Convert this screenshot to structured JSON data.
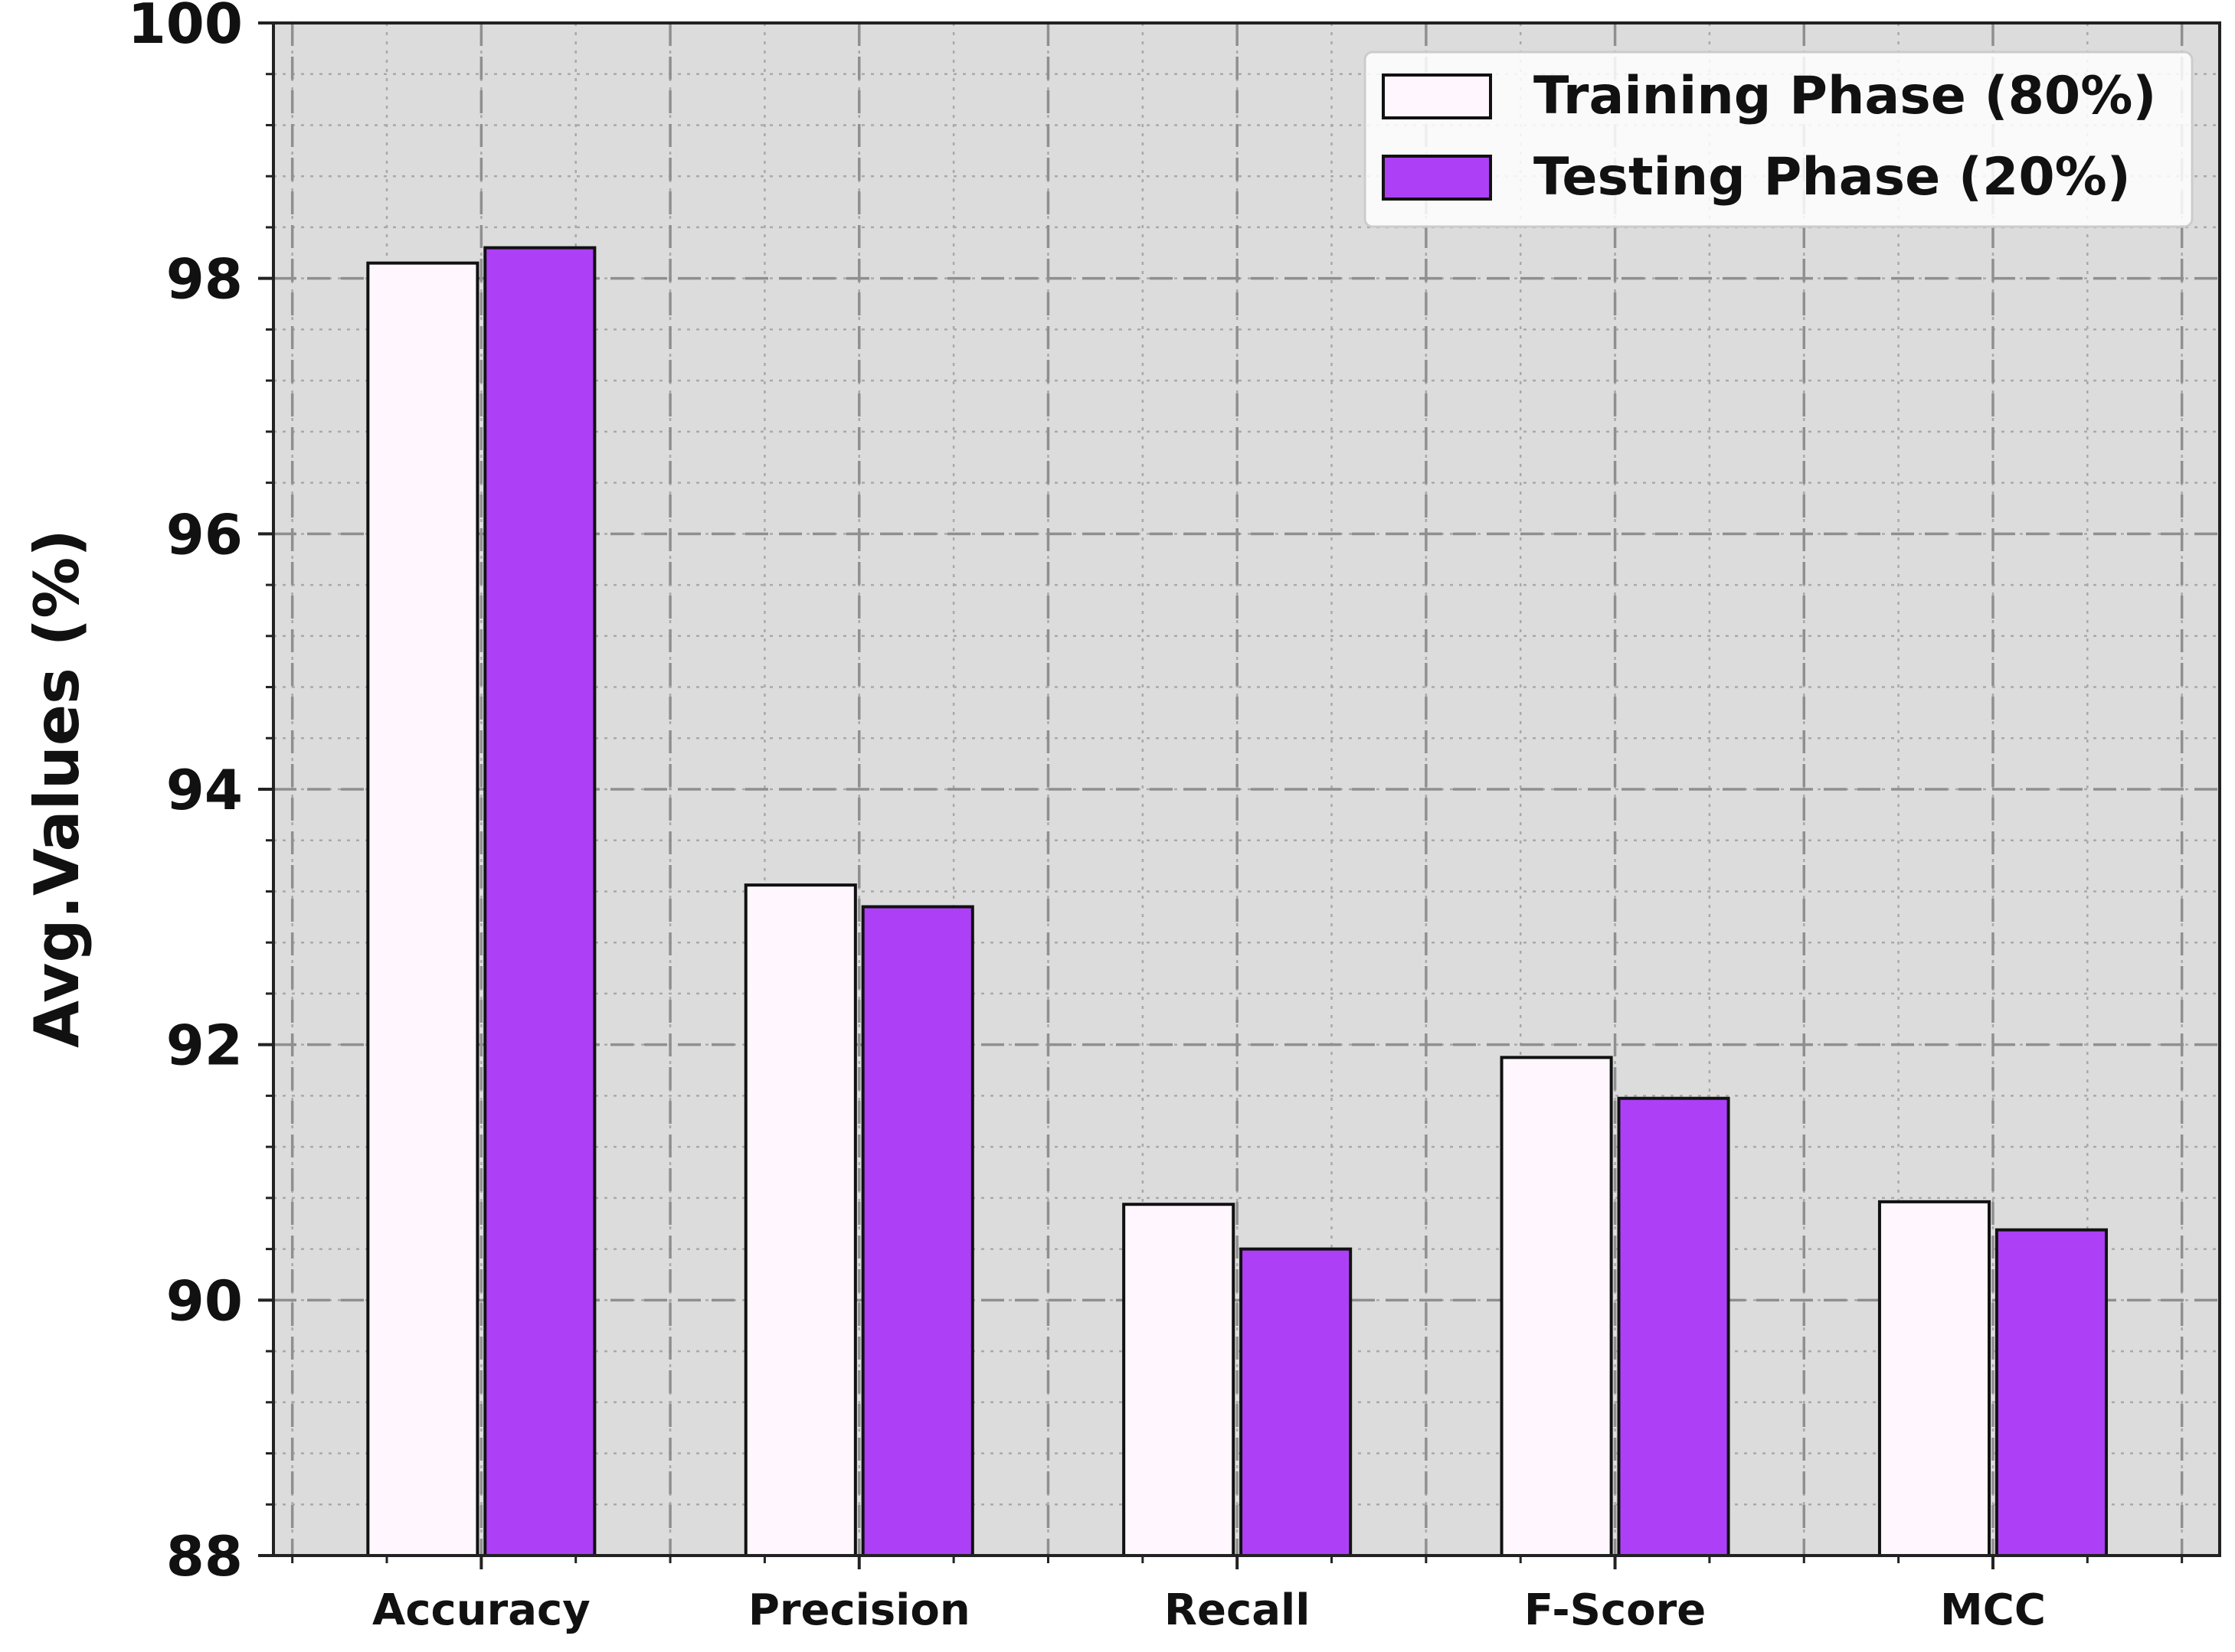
{
  "chart_data": {
    "type": "bar",
    "title": "",
    "xlabel": "",
    "ylabel": "Avg.Values (%)",
    "categories": [
      "Accuracy",
      "Precision",
      "Recall",
      "F-Score",
      "MCC"
    ],
    "series": [
      {
        "name": "Training Phase (80%)",
        "values": [
          98.12,
          93.25,
          90.75,
          91.9,
          90.77
        ],
        "color": "#fff7fd"
      },
      {
        "name": "Testing Phase (20%)",
        "values": [
          98.24,
          93.08,
          90.4,
          91.58,
          90.55
        ],
        "color": "#ad40f7"
      }
    ],
    "ylim": [
      88,
      100
    ],
    "yticks": [
      88,
      90,
      92,
      94,
      96,
      98,
      100
    ],
    "grid": true,
    "legend_position": "top-right",
    "background_color": "#dcdcdc",
    "edge_color": "#111111"
  }
}
